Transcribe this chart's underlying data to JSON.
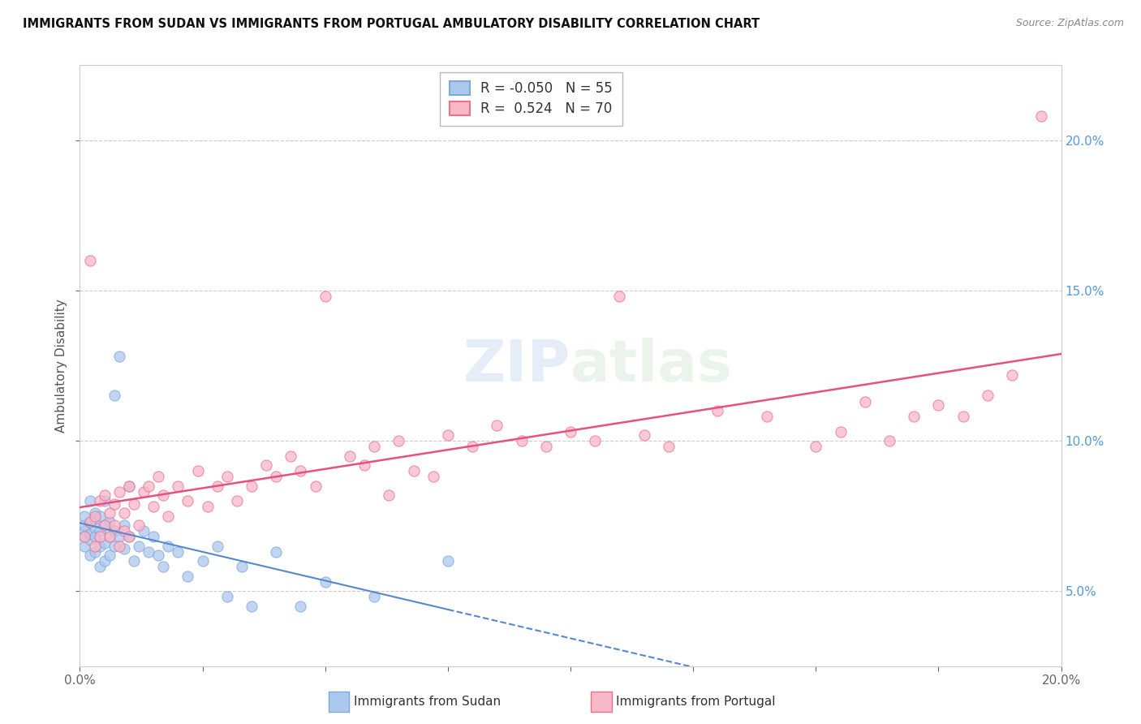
{
  "title": "IMMIGRANTS FROM SUDAN VS IMMIGRANTS FROM PORTUGAL AMBULATORY DISABILITY CORRELATION CHART",
  "source": "Source: ZipAtlas.com",
  "ylabel": "Ambulatory Disability",
  "y_ticks": [
    0.05,
    0.1,
    0.15,
    0.2
  ],
  "y_tick_labels": [
    "5.0%",
    "10.0%",
    "15.0%",
    "20.0%"
  ],
  "x_min": 0.0,
  "x_max": 0.2,
  "y_min": 0.025,
  "y_max": 0.225,
  "sudan_color": "#adc8ee",
  "portugal_color": "#f8b8c8",
  "sudan_edge_color": "#7aaad8",
  "portugal_edge_color": "#f07090",
  "sudan_line_color": "#5588cc",
  "portugal_line_color": "#e85080",
  "sudan_R": -0.05,
  "sudan_N": 55,
  "portugal_R": 0.524,
  "portugal_N": 70,
  "legend_label_sudan": "Immigrants from Sudan",
  "legend_label_portugal": "Immigrants from Portugal",
  "background_color": "#ffffff",
  "grid_color": "#cccccc",
  "sudan_points_x": [
    0.001,
    0.001,
    0.001,
    0.001,
    0.001,
    0.002,
    0.002,
    0.002,
    0.002,
    0.002,
    0.003,
    0.003,
    0.003,
    0.003,
    0.003,
    0.004,
    0.004,
    0.004,
    0.004,
    0.005,
    0.005,
    0.005,
    0.005,
    0.006,
    0.006,
    0.006,
    0.007,
    0.007,
    0.007,
    0.008,
    0.008,
    0.009,
    0.009,
    0.01,
    0.01,
    0.011,
    0.012,
    0.013,
    0.014,
    0.015,
    0.016,
    0.017,
    0.018,
    0.02,
    0.022,
    0.025,
    0.028,
    0.03,
    0.033,
    0.035,
    0.04,
    0.045,
    0.05,
    0.06,
    0.075
  ],
  "sudan_points_y": [
    0.07,
    0.068,
    0.072,
    0.065,
    0.075,
    0.073,
    0.067,
    0.08,
    0.062,
    0.069,
    0.076,
    0.071,
    0.063,
    0.068,
    0.074,
    0.065,
    0.07,
    0.058,
    0.075,
    0.072,
    0.066,
    0.08,
    0.06,
    0.068,
    0.073,
    0.062,
    0.115,
    0.07,
    0.065,
    0.128,
    0.068,
    0.072,
    0.064,
    0.085,
    0.068,
    0.06,
    0.065,
    0.07,
    0.063,
    0.068,
    0.062,
    0.058,
    0.065,
    0.063,
    0.055,
    0.06,
    0.065,
    0.048,
    0.058,
    0.045,
    0.063,
    0.045,
    0.053,
    0.048,
    0.06
  ],
  "portugal_points_x": [
    0.001,
    0.002,
    0.002,
    0.003,
    0.003,
    0.004,
    0.004,
    0.005,
    0.005,
    0.006,
    0.006,
    0.007,
    0.007,
    0.008,
    0.008,
    0.009,
    0.009,
    0.01,
    0.01,
    0.011,
    0.012,
    0.013,
    0.014,
    0.015,
    0.016,
    0.017,
    0.018,
    0.02,
    0.022,
    0.024,
    0.026,
    0.028,
    0.03,
    0.032,
    0.035,
    0.038,
    0.04,
    0.043,
    0.045,
    0.048,
    0.05,
    0.055,
    0.058,
    0.06,
    0.063,
    0.065,
    0.068,
    0.072,
    0.075,
    0.08,
    0.085,
    0.09,
    0.095,
    0.1,
    0.105,
    0.11,
    0.115,
    0.12,
    0.13,
    0.14,
    0.15,
    0.155,
    0.16,
    0.165,
    0.17,
    0.175,
    0.18,
    0.185,
    0.19,
    0.196
  ],
  "portugal_points_y": [
    0.068,
    0.073,
    0.16,
    0.065,
    0.075,
    0.08,
    0.068,
    0.072,
    0.082,
    0.076,
    0.068,
    0.079,
    0.072,
    0.083,
    0.065,
    0.076,
    0.07,
    0.068,
    0.085,
    0.079,
    0.072,
    0.083,
    0.085,
    0.078,
    0.088,
    0.082,
    0.075,
    0.085,
    0.08,
    0.09,
    0.078,
    0.085,
    0.088,
    0.08,
    0.085,
    0.092,
    0.088,
    0.095,
    0.09,
    0.085,
    0.148,
    0.095,
    0.092,
    0.098,
    0.082,
    0.1,
    0.09,
    0.088,
    0.102,
    0.098,
    0.105,
    0.1,
    0.098,
    0.103,
    0.1,
    0.148,
    0.102,
    0.098,
    0.11,
    0.108,
    0.098,
    0.103,
    0.113,
    0.1,
    0.108,
    0.112,
    0.108,
    0.115,
    0.122,
    0.208
  ]
}
